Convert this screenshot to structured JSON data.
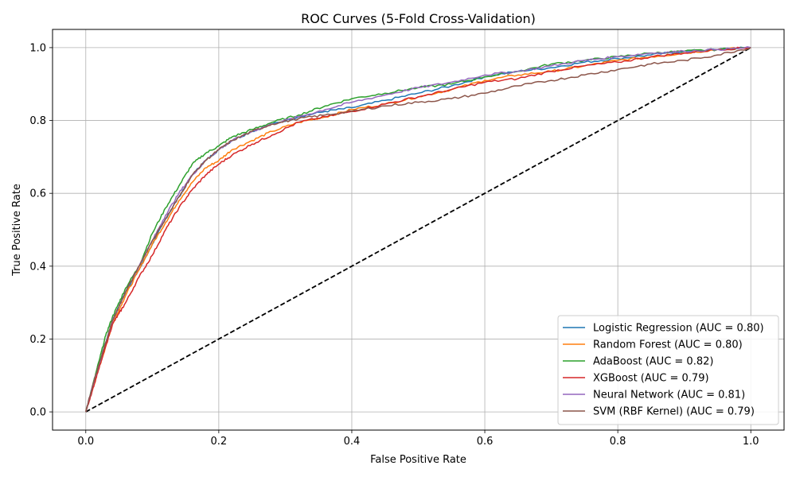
{
  "chart_data": {
    "type": "line",
    "title": "ROC Curves (5-Fold Cross-Validation)",
    "xlabel": "False Positive Rate",
    "ylabel": "True Positive Rate",
    "xlim": [
      -0.05,
      1.05
    ],
    "ylim": [
      -0.05,
      1.05
    ],
    "xticks": [
      0.0,
      0.2,
      0.4,
      0.6,
      0.8,
      1.0
    ],
    "yticks": [
      0.0,
      0.2,
      0.4,
      0.6,
      0.8,
      1.0
    ],
    "xtick_labels": [
      "0.0",
      "0.2",
      "0.4",
      "0.6",
      "0.8",
      "1.0"
    ],
    "ytick_labels": [
      "0.0",
      "0.2",
      "0.4",
      "0.6",
      "0.8",
      "1.0"
    ],
    "grid": true,
    "legend_position": "lower-right",
    "series": [
      {
        "name": "Logistic Regression (AUC = 0.80)",
        "color": "#1f77b4",
        "points": [
          [
            0,
            0
          ],
          [
            0.01,
            0.07
          ],
          [
            0.02,
            0.13
          ],
          [
            0.03,
            0.19
          ],
          [
            0.04,
            0.25
          ],
          [
            0.05,
            0.29
          ],
          [
            0.06,
            0.33
          ],
          [
            0.08,
            0.39
          ],
          [
            0.1,
            0.46
          ],
          [
            0.12,
            0.53
          ],
          [
            0.14,
            0.59
          ],
          [
            0.16,
            0.65
          ],
          [
            0.18,
            0.69
          ],
          [
            0.2,
            0.72
          ],
          [
            0.22,
            0.745
          ],
          [
            0.25,
            0.77
          ],
          [
            0.28,
            0.79
          ],
          [
            0.32,
            0.81
          ],
          [
            0.36,
            0.825
          ],
          [
            0.4,
            0.835
          ],
          [
            0.45,
            0.855
          ],
          [
            0.5,
            0.875
          ],
          [
            0.55,
            0.895
          ],
          [
            0.6,
            0.92
          ],
          [
            0.65,
            0.935
          ],
          [
            0.7,
            0.945
          ],
          [
            0.75,
            0.96
          ],
          [
            0.8,
            0.97
          ],
          [
            0.85,
            0.98
          ],
          [
            0.9,
            0.99
          ],
          [
            0.95,
            0.995
          ],
          [
            1.0,
            1.0
          ]
        ]
      },
      {
        "name": "Random Forest (AUC = 0.80)",
        "color": "#ff7f0e",
        "points": [
          [
            0,
            0
          ],
          [
            0.01,
            0.06
          ],
          [
            0.02,
            0.12
          ],
          [
            0.03,
            0.18
          ],
          [
            0.04,
            0.24
          ],
          [
            0.05,
            0.28
          ],
          [
            0.06,
            0.32
          ],
          [
            0.08,
            0.39
          ],
          [
            0.1,
            0.46
          ],
          [
            0.12,
            0.52
          ],
          [
            0.14,
            0.58
          ],
          [
            0.16,
            0.63
          ],
          [
            0.18,
            0.67
          ],
          [
            0.2,
            0.69
          ],
          [
            0.22,
            0.72
          ],
          [
            0.25,
            0.745
          ],
          [
            0.28,
            0.77
          ],
          [
            0.32,
            0.795
          ],
          [
            0.36,
            0.81
          ],
          [
            0.4,
            0.83
          ],
          [
            0.45,
            0.845
          ],
          [
            0.5,
            0.865
          ],
          [
            0.55,
            0.885
          ],
          [
            0.6,
            0.91
          ],
          [
            0.65,
            0.925
          ],
          [
            0.7,
            0.935
          ],
          [
            0.75,
            0.95
          ],
          [
            0.8,
            0.965
          ],
          [
            0.85,
            0.975
          ],
          [
            0.9,
            0.985
          ],
          [
            0.95,
            0.995
          ],
          [
            1.0,
            1.0
          ]
        ]
      },
      {
        "name": "AdaBoost (AUC = 0.82)",
        "color": "#2ca02c",
        "points": [
          [
            0,
            0
          ],
          [
            0.01,
            0.07
          ],
          [
            0.02,
            0.14
          ],
          [
            0.03,
            0.21
          ],
          [
            0.04,
            0.26
          ],
          [
            0.05,
            0.3
          ],
          [
            0.06,
            0.34
          ],
          [
            0.08,
            0.4
          ],
          [
            0.1,
            0.49
          ],
          [
            0.12,
            0.56
          ],
          [
            0.14,
            0.62
          ],
          [
            0.16,
            0.68
          ],
          [
            0.18,
            0.71
          ],
          [
            0.2,
            0.73
          ],
          [
            0.22,
            0.755
          ],
          [
            0.25,
            0.775
          ],
          [
            0.28,
            0.795
          ],
          [
            0.32,
            0.815
          ],
          [
            0.36,
            0.84
          ],
          [
            0.4,
            0.86
          ],
          [
            0.45,
            0.875
          ],
          [
            0.5,
            0.89
          ],
          [
            0.55,
            0.9
          ],
          [
            0.6,
            0.92
          ],
          [
            0.65,
            0.935
          ],
          [
            0.7,
            0.955
          ],
          [
            0.75,
            0.965
          ],
          [
            0.8,
            0.975
          ],
          [
            0.85,
            0.985
          ],
          [
            0.9,
            0.99
          ],
          [
            0.95,
            0.995
          ],
          [
            1.0,
            1.0
          ]
        ]
      },
      {
        "name": "XGBoost (AUC = 0.79)",
        "color": "#d62728",
        "points": [
          [
            0,
            0
          ],
          [
            0.01,
            0.06
          ],
          [
            0.02,
            0.12
          ],
          [
            0.03,
            0.18
          ],
          [
            0.04,
            0.24
          ],
          [
            0.05,
            0.27
          ],
          [
            0.06,
            0.3
          ],
          [
            0.08,
            0.37
          ],
          [
            0.1,
            0.43
          ],
          [
            0.12,
            0.5
          ],
          [
            0.14,
            0.56
          ],
          [
            0.16,
            0.61
          ],
          [
            0.18,
            0.65
          ],
          [
            0.2,
            0.68
          ],
          [
            0.22,
            0.705
          ],
          [
            0.25,
            0.735
          ],
          [
            0.28,
            0.76
          ],
          [
            0.32,
            0.795
          ],
          [
            0.36,
            0.81
          ],
          [
            0.4,
            0.825
          ],
          [
            0.45,
            0.845
          ],
          [
            0.5,
            0.865
          ],
          [
            0.55,
            0.885
          ],
          [
            0.6,
            0.905
          ],
          [
            0.65,
            0.915
          ],
          [
            0.7,
            0.935
          ],
          [
            0.75,
            0.95
          ],
          [
            0.8,
            0.96
          ],
          [
            0.85,
            0.975
          ],
          [
            0.9,
            0.985
          ],
          [
            0.95,
            0.995
          ],
          [
            1.0,
            1.0
          ]
        ]
      },
      {
        "name": "Neural Network (AUC = 0.81)",
        "color": "#9467bd",
        "points": [
          [
            0,
            0
          ],
          [
            0.01,
            0.07
          ],
          [
            0.02,
            0.13
          ],
          [
            0.03,
            0.19
          ],
          [
            0.04,
            0.25
          ],
          [
            0.05,
            0.29
          ],
          [
            0.06,
            0.33
          ],
          [
            0.08,
            0.4
          ],
          [
            0.1,
            0.47
          ],
          [
            0.12,
            0.54
          ],
          [
            0.14,
            0.6
          ],
          [
            0.16,
            0.65
          ],
          [
            0.18,
            0.69
          ],
          [
            0.2,
            0.72
          ],
          [
            0.22,
            0.745
          ],
          [
            0.25,
            0.77
          ],
          [
            0.28,
            0.79
          ],
          [
            0.32,
            0.81
          ],
          [
            0.36,
            0.83
          ],
          [
            0.4,
            0.85
          ],
          [
            0.45,
            0.87
          ],
          [
            0.5,
            0.89
          ],
          [
            0.55,
            0.905
          ],
          [
            0.6,
            0.925
          ],
          [
            0.65,
            0.935
          ],
          [
            0.7,
            0.95
          ],
          [
            0.75,
            0.965
          ],
          [
            0.8,
            0.975
          ],
          [
            0.85,
            0.985
          ],
          [
            0.9,
            0.99
          ],
          [
            0.95,
            0.995
          ],
          [
            1.0,
            1.0
          ]
        ]
      },
      {
        "name": "SVM (RBF Kernel) (AUC = 0.79)",
        "color": "#8c564b",
        "points": [
          [
            0,
            0
          ],
          [
            0.01,
            0.07
          ],
          [
            0.02,
            0.13
          ],
          [
            0.03,
            0.19
          ],
          [
            0.04,
            0.25
          ],
          [
            0.05,
            0.29
          ],
          [
            0.06,
            0.33
          ],
          [
            0.08,
            0.4
          ],
          [
            0.1,
            0.47
          ],
          [
            0.12,
            0.53
          ],
          [
            0.14,
            0.59
          ],
          [
            0.16,
            0.65
          ],
          [
            0.18,
            0.69
          ],
          [
            0.2,
            0.72
          ],
          [
            0.22,
            0.745
          ],
          [
            0.25,
            0.77
          ],
          [
            0.28,
            0.79
          ],
          [
            0.32,
            0.805
          ],
          [
            0.36,
            0.815
          ],
          [
            0.4,
            0.825
          ],
          [
            0.45,
            0.84
          ],
          [
            0.5,
            0.85
          ],
          [
            0.55,
            0.86
          ],
          [
            0.6,
            0.875
          ],
          [
            0.65,
            0.895
          ],
          [
            0.7,
            0.91
          ],
          [
            0.75,
            0.925
          ],
          [
            0.8,
            0.94
          ],
          [
            0.85,
            0.955
          ],
          [
            0.9,
            0.965
          ],
          [
            0.95,
            0.98
          ],
          [
            1.0,
            1.0
          ]
        ]
      }
    ],
    "reference_line": {
      "color": "#000000",
      "points": [
        [
          0,
          0
        ],
        [
          1,
          1
        ]
      ]
    }
  }
}
